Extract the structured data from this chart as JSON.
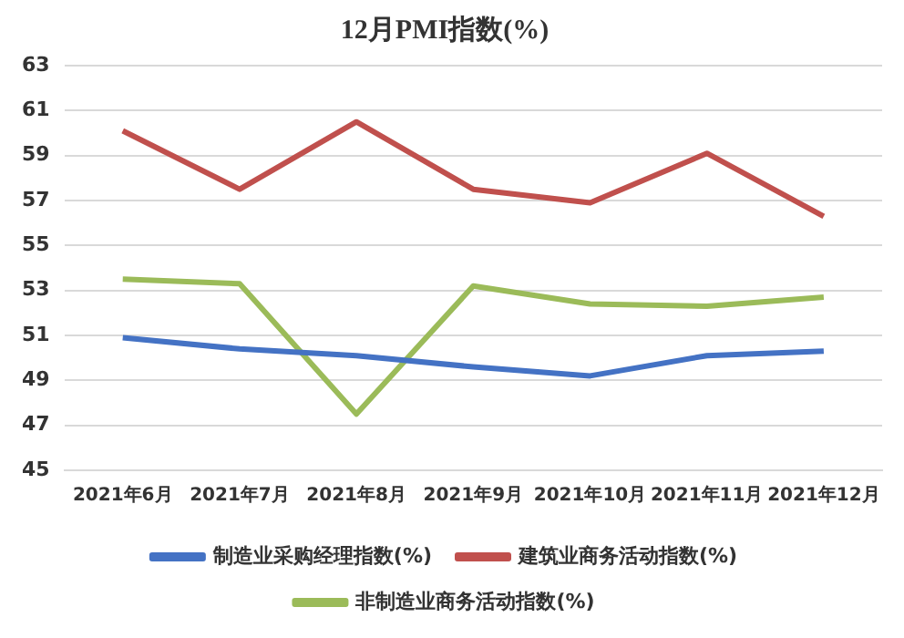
{
  "chart_data": {
    "type": "line",
    "title": "12月PMI指数(%)",
    "categories": [
      "2021年6月",
      "2021年7月",
      "2021年8月",
      "2021年9月",
      "2021年10月",
      "2021年11月",
      "2021年12月"
    ],
    "series": [
      {
        "name": "制造业采购经理指数(%)",
        "color": "#4472c4",
        "values": [
          50.9,
          50.4,
          50.1,
          49.6,
          49.2,
          50.1,
          50.3
        ]
      },
      {
        "name": "建筑业商务活动指数(%)",
        "color": "#c0504d",
        "values": [
          60.1,
          57.5,
          60.5,
          57.5,
          56.9,
          59.1,
          56.3
        ]
      },
      {
        "name": "非制造业商务活动指数(%)",
        "color": "#9bbb59",
        "values": [
          53.5,
          53.3,
          47.5,
          53.2,
          52.4,
          52.3,
          52.7
        ]
      }
    ],
    "ylim": [
      45,
      63
    ],
    "yticks": [
      45,
      47,
      49,
      51,
      53,
      55,
      57,
      59,
      61,
      63
    ],
    "grid": "y",
    "legend": "bottom",
    "marker": "none",
    "line_style": "solid"
  }
}
